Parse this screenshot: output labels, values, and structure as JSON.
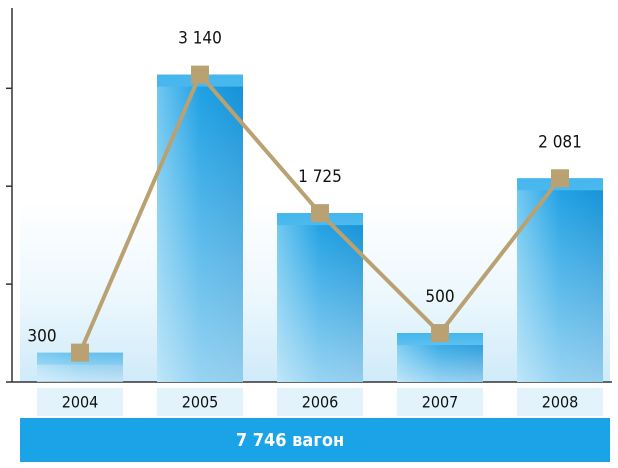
{
  "chart_data": {
    "type": "bar_line",
    "categories": [
      "2004",
      "2005",
      "2006",
      "2007",
      "2008"
    ],
    "values": [
      300,
      3140,
      1725,
      500,
      2081
    ],
    "value_labels": [
      "300",
      "3 140",
      "1 725",
      "500",
      "2 081"
    ],
    "color": "#1a9fe3",
    "line_color": "#b9a172",
    "ylim": [
      0,
      3800
    ],
    "yticks": [
      0,
      1000,
      2000,
      3000
    ],
    "footer": "7 746 вагон"
  }
}
